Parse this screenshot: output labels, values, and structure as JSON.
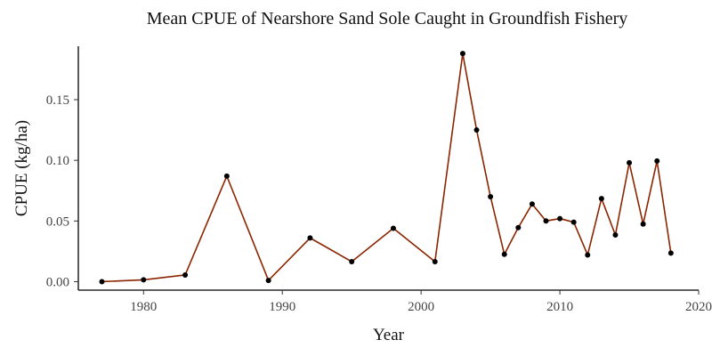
{
  "chart_data": {
    "type": "line",
    "title": "Mean CPUE of Nearshore Sand Sole Caught in Groundfish Fishery",
    "xlabel": "Year",
    "ylabel": "CPUE (kg/ha)",
    "xlim": [
      1975.3,
      2020
    ],
    "ylim": [
      -0.007,
      0.194
    ],
    "x_ticks": [
      1980,
      1990,
      2000,
      2010,
      2020
    ],
    "y_ticks": [
      0.0,
      0.05,
      0.1,
      0.15
    ],
    "y_tick_labels": [
      "0.00",
      "0.05",
      "0.10",
      "0.15"
    ],
    "grid": false,
    "legend": "none",
    "line_color": "#8b2500",
    "point_color": "#000000",
    "series": [
      {
        "x": [
          1977,
          1980,
          1983,
          1986,
          1989,
          1992,
          1995,
          1998,
          2001,
          2003,
          2004,
          2005,
          2006,
          2007,
          2008,
          2009,
          2010,
          2011,
          2012,
          2013,
          2014,
          2015,
          2016,
          2017,
          2018
        ],
        "values": [
          0.0,
          0.0015,
          0.0055,
          0.087,
          0.001,
          0.036,
          0.0165,
          0.044,
          0.0165,
          0.188,
          0.125,
          0.07,
          0.0225,
          0.0445,
          0.064,
          0.05,
          0.052,
          0.049,
          0.022,
          0.0685,
          0.0385,
          0.098,
          0.0475,
          0.0995,
          0.0235
        ]
      }
    ]
  }
}
